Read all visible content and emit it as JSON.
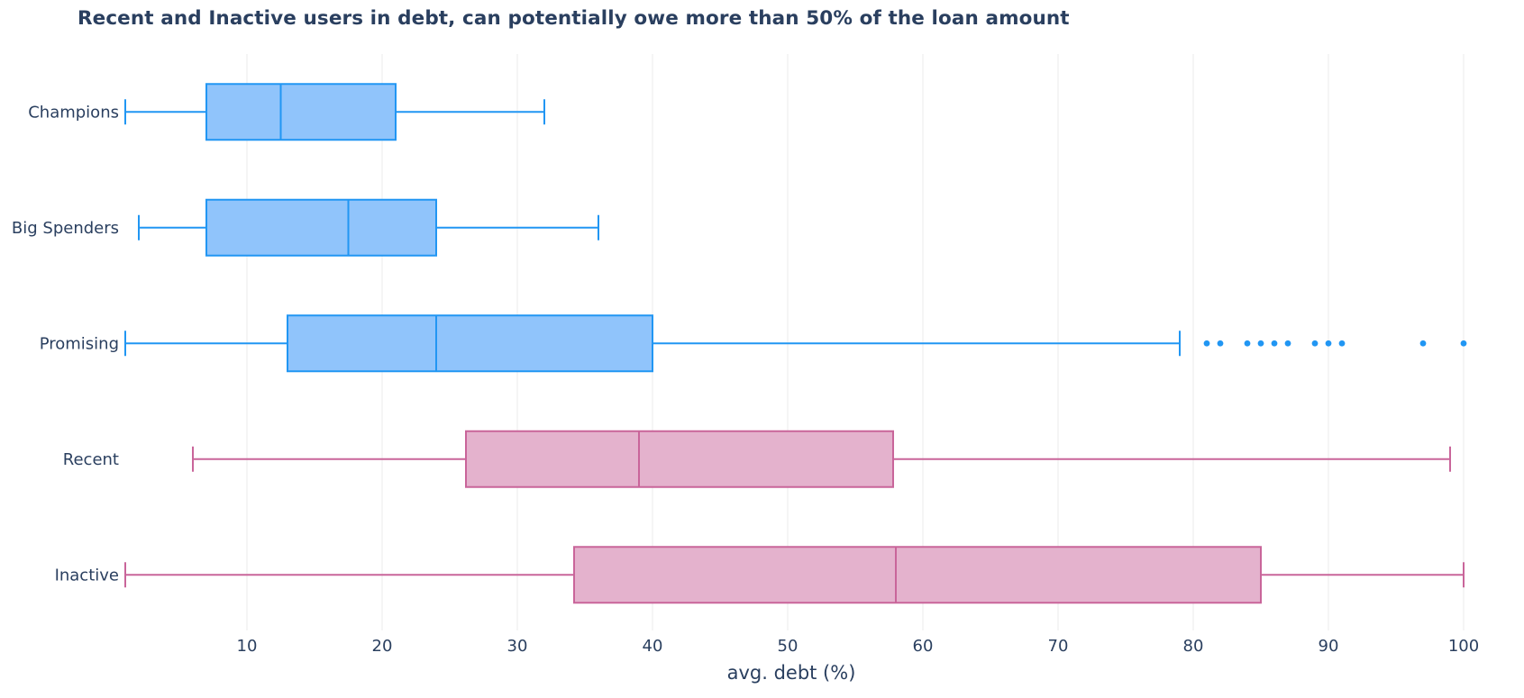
{
  "chart_data": {
    "type": "box",
    "orientation": "horizontal",
    "title": "Recent and Inactive users in debt, can potentially owe more than 50% of the loan amount",
    "xlabel": "avg. debt (%)",
    "ylabel": "",
    "xlim": [
      1,
      100
    ],
    "x_ticks": [
      10,
      20,
      30,
      40,
      50,
      60,
      70,
      80,
      90,
      100
    ],
    "grid": true,
    "legend": "none",
    "colors": {
      "blue": "#2196f3",
      "blue_fill": "#90c4fb",
      "pink": "#c9659a",
      "pink_fill": "#e4b2cd"
    },
    "series": [
      {
        "category": "Champions",
        "min": 1,
        "q1": 7,
        "median": 12.5,
        "q3": 21,
        "max": 32,
        "outliers": [],
        "color": "blue"
      },
      {
        "category": "Big Spenders",
        "min": 2,
        "q1": 7,
        "median": 17.5,
        "q3": 24,
        "max": 36,
        "outliers": [],
        "color": "blue"
      },
      {
        "category": "Promising",
        "min": 1,
        "q1": 13,
        "median": 24,
        "q3": 40,
        "max": 79,
        "outliers": [
          81,
          82,
          84,
          85,
          86,
          87,
          89,
          90,
          91,
          97,
          100
        ],
        "color": "blue"
      },
      {
        "category": "Recent",
        "min": 6,
        "q1": 26.2,
        "median": 39,
        "q3": 57.8,
        "max": 99,
        "outliers": [],
        "color": "pink"
      },
      {
        "category": "Inactive",
        "min": 1,
        "q1": 34.2,
        "median": 58,
        "q3": 85,
        "max": 100,
        "outliers": [],
        "color": "pink"
      }
    ]
  }
}
